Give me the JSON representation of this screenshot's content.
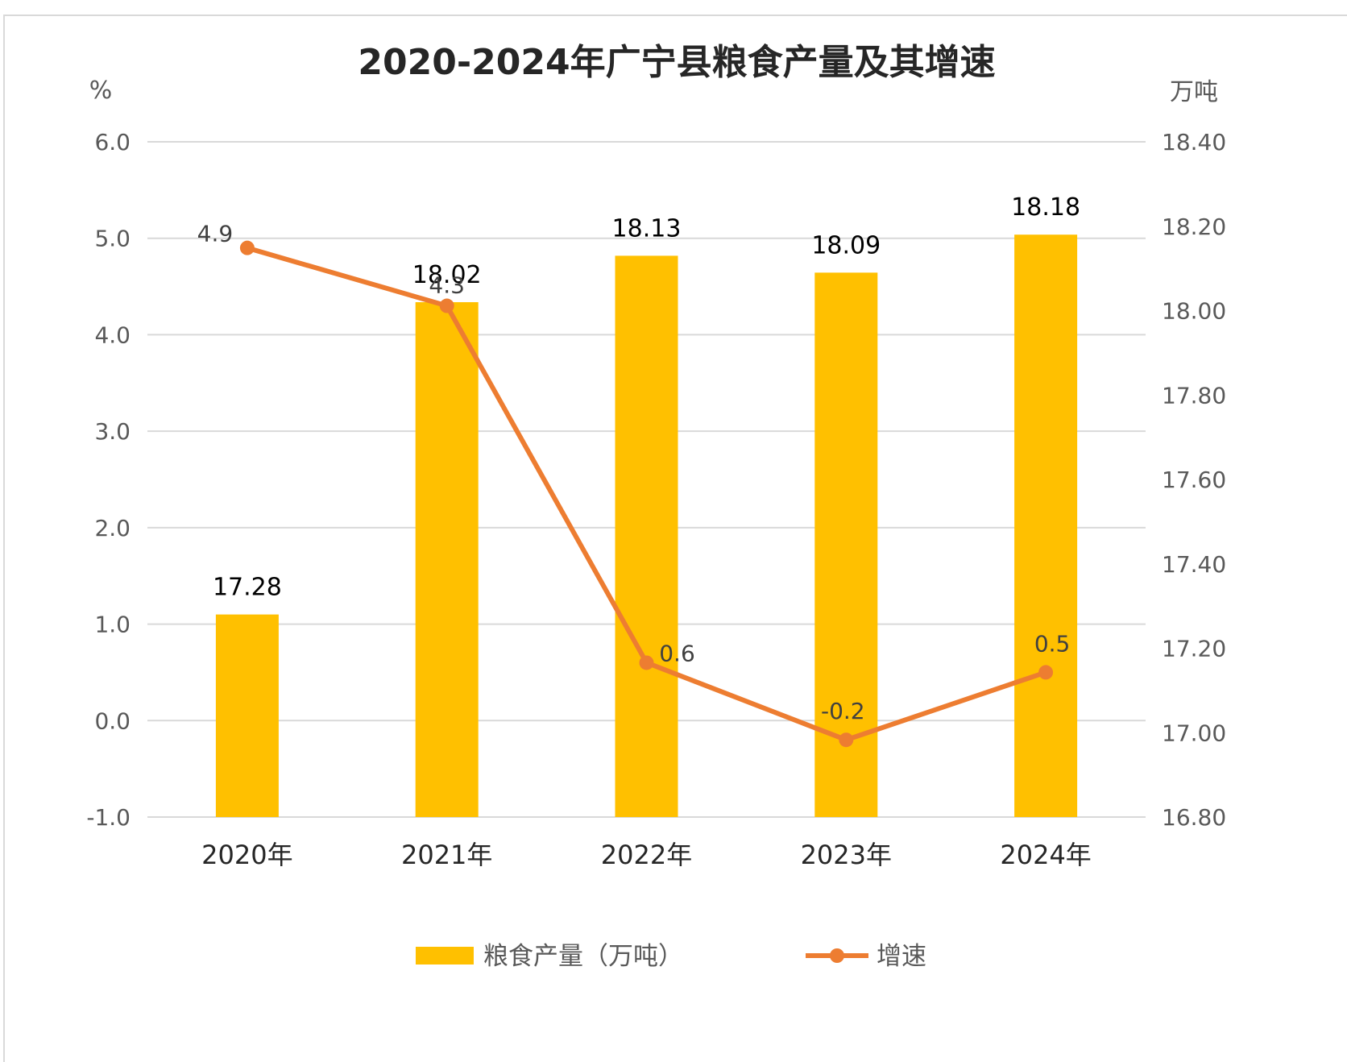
{
  "chart_data": {
    "type": "bar",
    "title": "2020-2024年广宁县粮食产量及其增速",
    "left_axis_unit": "%",
    "right_axis_unit": "万吨",
    "categories": [
      "2020年",
      "2021年",
      "2022年",
      "2023年",
      "2024年"
    ],
    "series": [
      {
        "name": "粮食产量（万吨）",
        "type": "bar",
        "axis": "right",
        "color": "#FFC000",
        "values": [
          17.28,
          18.02,
          18.13,
          18.09,
          18.18
        ],
        "labels": [
          "17.28",
          "18.02",
          "18.13",
          "18.09",
          "18.18"
        ]
      },
      {
        "name": "增速",
        "type": "line",
        "axis": "left",
        "color": "#ED7D31",
        "values": [
          4.9,
          4.3,
          0.6,
          -0.2,
          0.5
        ],
        "labels": [
          "4.9",
          "4.3",
          "0.6",
          "-0.2",
          "0.5"
        ]
      }
    ],
    "left_axis": {
      "ylim": [
        -1.0,
        6.0
      ],
      "ticks": [
        6.0,
        5.0,
        4.0,
        3.0,
        2.0,
        1.0,
        0.0,
        -1.0
      ],
      "tick_labels": [
        "6.0",
        "5.0",
        "4.0",
        "3.0",
        "2.0",
        "1.0",
        "0.0",
        "-1.0"
      ]
    },
    "right_axis": {
      "ylim": [
        16.8,
        18.4
      ],
      "ticks": [
        18.4,
        18.2,
        18.0,
        17.8,
        17.6,
        17.4,
        17.2,
        17.0,
        16.8
      ],
      "tick_labels": [
        "18.40",
        "18.20",
        "18.00",
        "17.80",
        "17.60",
        "17.40",
        "17.20",
        "17.00",
        "16.80"
      ]
    },
    "grid": true,
    "legend_position": "bottom",
    "negative_color": "#FF0000"
  }
}
